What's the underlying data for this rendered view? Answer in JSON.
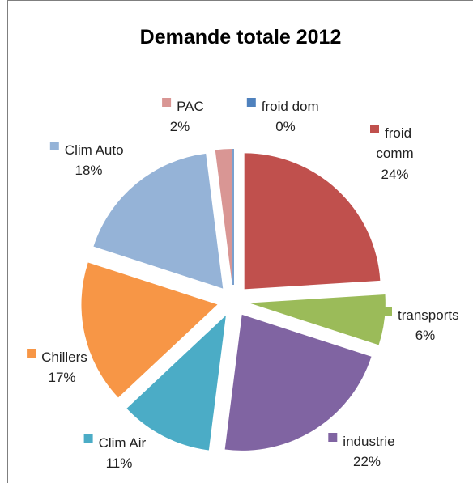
{
  "chart_data": {
    "type": "pie",
    "title": "Demande totale 2012",
    "slices": [
      {
        "label": "froid dom",
        "value": 0,
        "pct_label": "0%",
        "color": "#4f81bd"
      },
      {
        "label": "froid comm",
        "value": 24,
        "pct_label": "24%",
        "color": "#c0504d"
      },
      {
        "label": "transports",
        "value": 6,
        "pct_label": "6%",
        "color": "#9bbb59"
      },
      {
        "label": "industrie",
        "value": 22,
        "pct_label": "22%",
        "color": "#8064a2"
      },
      {
        "label": "Clim Air",
        "value": 11,
        "pct_label": "11%",
        "color": "#4bacc6"
      },
      {
        "label": "Chillers",
        "value": 17,
        "pct_label": "17%",
        "color": "#f79646"
      },
      {
        "label": "Clim Auto",
        "value": 18,
        "pct_label": "18%",
        "color": "#95b3d7"
      },
      {
        "label": "PAC",
        "value": 2,
        "pct_label": "2%",
        "color": "#d99694"
      }
    ],
    "legend": "inline-labels"
  }
}
